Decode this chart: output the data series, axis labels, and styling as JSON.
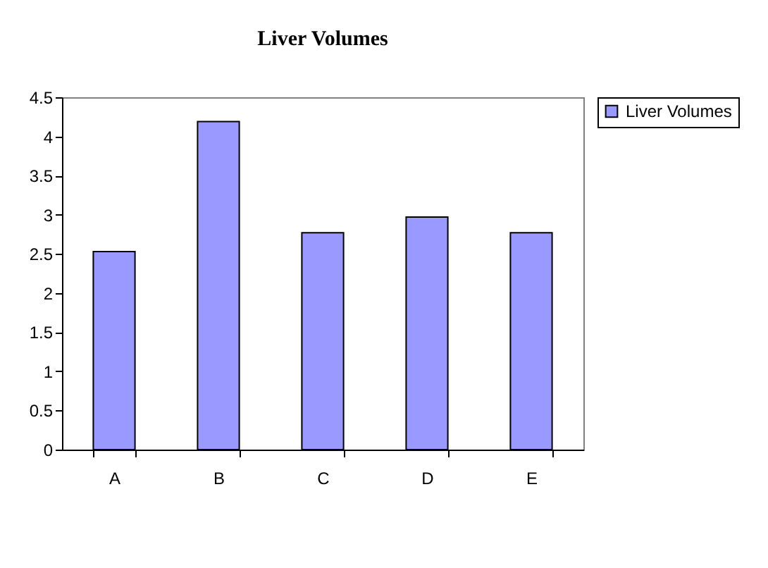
{
  "chart_data": {
    "type": "bar",
    "title": "Liver Volumes",
    "categories": [
      "A",
      "B",
      "C",
      "D",
      "E"
    ],
    "series": [
      {
        "name": "Liver Volumes",
        "color": "#9999ff",
        "values": [
          2.53,
          4.19,
          2.77,
          2.97,
          2.77
        ]
      }
    ],
    "ylim": [
      0,
      4.5
    ],
    "yticks": [
      0,
      0.5,
      1,
      1.5,
      2,
      2.5,
      3,
      3.5,
      4,
      4.5
    ],
    "grid": false,
    "legend": "right"
  }
}
